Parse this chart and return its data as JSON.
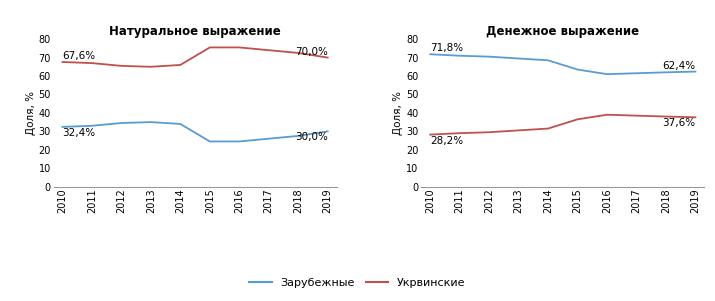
{
  "years": [
    2010,
    2011,
    2012,
    2013,
    2014,
    2015,
    2016,
    2017,
    2018,
    2019
  ],
  "natural_foreign": [
    32.4,
    33.0,
    34.5,
    35.0,
    34.0,
    24.5,
    24.5,
    26.0,
    27.5,
    30.0
  ],
  "natural_ukraine": [
    67.6,
    67.0,
    65.5,
    65.0,
    66.0,
    75.5,
    75.5,
    74.0,
    72.5,
    70.0
  ],
  "money_foreign": [
    71.8,
    71.0,
    70.5,
    69.5,
    68.5,
    63.5,
    61.0,
    61.5,
    62.0,
    62.4
  ],
  "money_ukraine": [
    28.2,
    29.0,
    29.5,
    30.5,
    31.5,
    36.5,
    39.0,
    38.5,
    38.0,
    37.6
  ],
  "color_foreign": "#5b9bd5",
  "color_ukraine": "#c0504d",
  "title_natural": "Натуральное выражение",
  "title_money": "Денежное выражение",
  "ylabel": "Доля, %",
  "legend_foreign": "Зарубежные",
  "legend_ukraine": "Укрвинские",
  "ylim": [
    0,
    80
  ],
  "yticks": [
    0,
    10,
    20,
    30,
    40,
    50,
    60,
    70,
    80
  ],
  "natural_label_start_foreign": "32,4%",
  "natural_label_end_foreign": "30,0%",
  "natural_label_start_ukraine": "67,6%",
  "natural_label_end_ukraine": "70,0%",
  "money_label_start_foreign": "71,8%",
  "money_label_end_foreign": "62,4%",
  "money_label_start_ukraine": "28,2%",
  "money_label_end_ukraine": "37,6%"
}
